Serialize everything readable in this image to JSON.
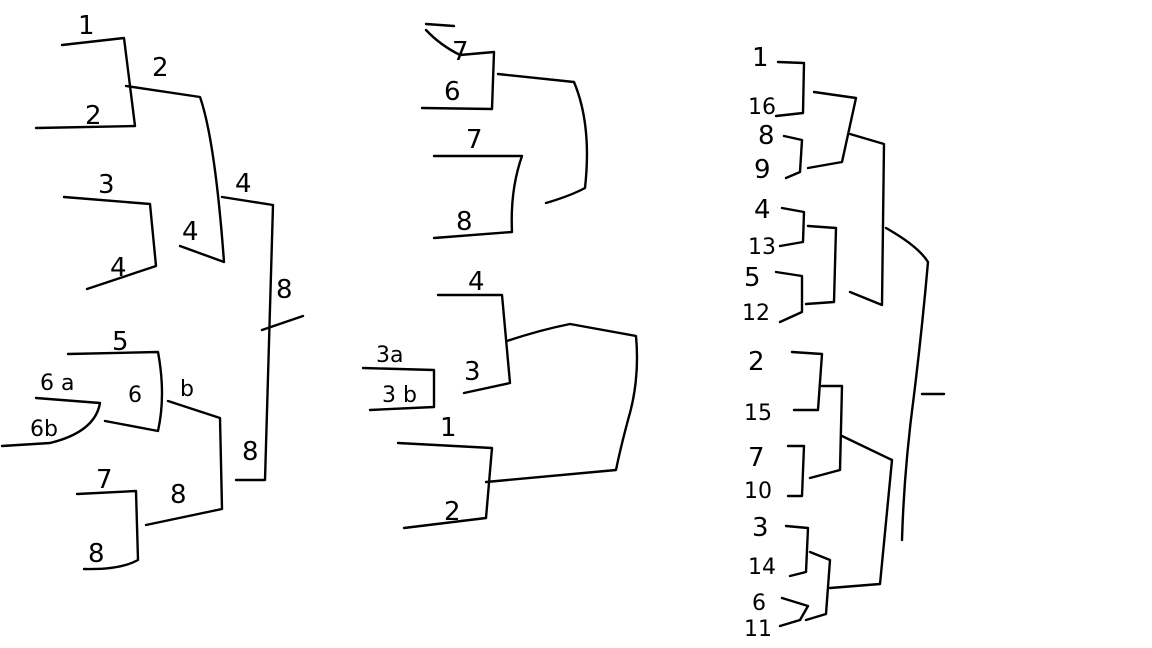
{
  "bracket_left": {
    "labels": {
      "top_1": "1",
      "top_2": "2",
      "r2_2": "2",
      "top_3": "3",
      "top_4": "4",
      "r2_4": "4",
      "r3_4": "4",
      "final_8": "8",
      "top_5": "5",
      "e6a": "6 a",
      "e6b": "6b",
      "r2_6": "6",
      "r2_6b": "b",
      "top_7": "7",
      "top_8": "8",
      "r2_8": "8",
      "r3_8": "8"
    }
  },
  "bracket_middle": {
    "labels": {
      "m7a": "7",
      "m6": "6",
      "m7": "7",
      "m8": "8",
      "m4": "4",
      "m3a": "3a",
      "m3b": "3 b",
      "m3": "3",
      "m1": "1",
      "m2": "2"
    }
  },
  "bracket_right": {
    "seeds": [
      "1",
      "16",
      "8",
      "9",
      "4",
      "13",
      "5",
      "12",
      "2",
      "15",
      "7",
      "10",
      "3",
      "14",
      "6",
      "11"
    ]
  }
}
